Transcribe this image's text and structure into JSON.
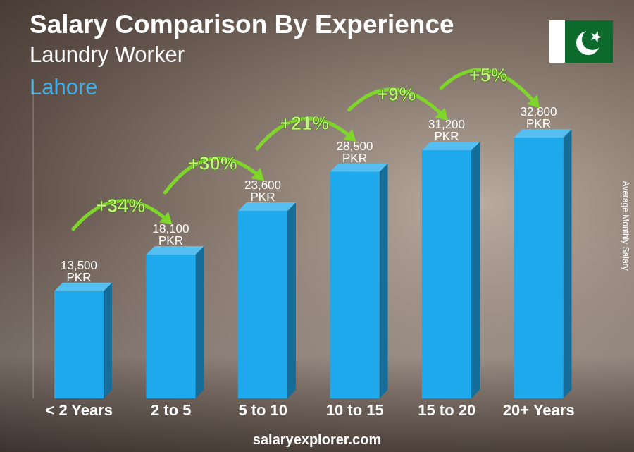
{
  "chart_data": {
    "type": "bar",
    "title": "Salary Comparison By Experience",
    "subtitle": [
      "Laundry Worker",
      "Lahore"
    ],
    "y_label": "Average Monthly Salary",
    "source": "salaryexplorer.com",
    "categories": [
      "< 2 Years",
      "2 to 5",
      "5 to 10",
      "10 to 15",
      "15 to 20",
      "20+ Years"
    ],
    "values": [
      13500,
      18100,
      23600,
      28500,
      31200,
      32800
    ],
    "value_labels": [
      "13,500 PKR",
      "18,100 PKR",
      "23,600 PKR",
      "28,500 PKR",
      "31,200 PKR",
      "32,800 PKR"
    ],
    "annotations": [
      "+34%",
      "+30%",
      "+21%",
      "+9%",
      "+5%"
    ],
    "color": "#1ea9ec",
    "ylim": [
      0,
      40000
    ],
    "grid": false,
    "data_labels": true,
    "tick_labels": "x"
  }
}
